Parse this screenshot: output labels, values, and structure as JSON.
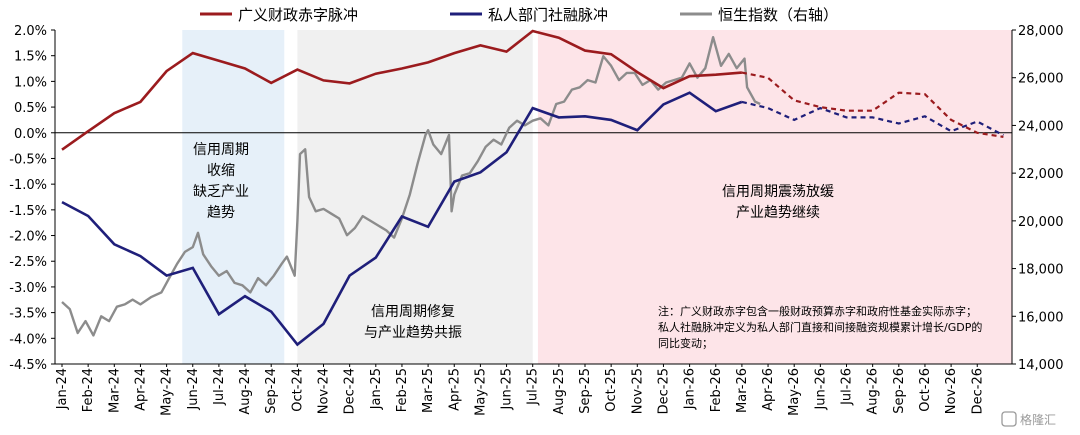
{
  "chart_data": {
    "type": "line",
    "title": "",
    "legend": [
      {
        "label": "广义财政赤字脉冲",
        "color": "#9b1b1e",
        "axis": "left"
      },
      {
        "label": "私人部门社融脉冲",
        "color": "#1f1f7a",
        "axis": "left"
      },
      {
        "label": "恒生指数（右轴）",
        "color": "#8c8c8c",
        "axis": "right"
      }
    ],
    "legend_position": "top",
    "x_categories": [
      "Jan-24",
      "Feb-24",
      "Mar-24",
      "Apr-24",
      "May-24",
      "Jun-24",
      "Jul-24",
      "Aug-24",
      "Sep-24",
      "Oct-24",
      "Nov-24",
      "Dec-24",
      "Jan-25",
      "Feb-25",
      "Mar-25",
      "Apr-25",
      "May-25",
      "Jun-25",
      "Jul-25",
      "Aug-25",
      "Sep-25",
      "Oct-25",
      "Nov-25",
      "Dec-25",
      "Jan-26",
      "Feb-26",
      "Mar-26",
      "Apr-26",
      "May-26",
      "Jun-26",
      "Jul-26",
      "Aug-26",
      "Sep-26",
      "Oct-26",
      "Nov-26",
      "Dec-26"
    ],
    "y_left": {
      "min": -0.045,
      "max": 0.02,
      "ticks": [
        "2.0%",
        "1.5%",
        "1.0%",
        "0.5%",
        "0.0%",
        "-0.5%",
        "-1.0%",
        "-1.5%",
        "-2.0%",
        "-2.5%",
        "-3.0%",
        "-3.5%",
        "-4.0%",
        "-4.5%"
      ]
    },
    "y_right": {
      "min": 14000,
      "max": 28000,
      "ticks": [
        "28,000",
        "26,000",
        "24,000",
        "22,000",
        "20,000",
        "18,000",
        "16,000",
        "14,000"
      ]
    },
    "series": [
      {
        "name": "广义财政赤字脉冲",
        "color": "#9b1b1e",
        "actual": [
          [
            0,
            -0.0033
          ],
          [
            1,
            0.0003
          ],
          [
            2,
            0.0038
          ],
          [
            3,
            0.006
          ],
          [
            4,
            0.012
          ],
          [
            5,
            0.0155
          ],
          [
            6,
            0.014
          ],
          [
            7,
            0.0125
          ],
          [
            8,
            0.0097
          ],
          [
            9,
            0.0123
          ],
          [
            10,
            0.0102
          ],
          [
            11,
            0.0096
          ],
          [
            12,
            0.0115
          ],
          [
            13,
            0.0125
          ],
          [
            14,
            0.0137
          ],
          [
            15,
            0.0155
          ],
          [
            16,
            0.017
          ],
          [
            17,
            0.0158
          ],
          [
            18,
            0.0198
          ],
          [
            19,
            0.0185
          ],
          [
            20,
            0.016
          ],
          [
            21,
            0.0153
          ],
          [
            22,
            0.0118
          ],
          [
            23,
            0.0087
          ],
          [
            24,
            0.011
          ],
          [
            25,
            0.0113
          ],
          [
            26,
            0.0117
          ]
        ],
        "forecast": [
          [
            26,
            0.0117
          ],
          [
            27,
            0.0107
          ],
          [
            28,
            0.0063
          ],
          [
            29,
            0.005
          ],
          [
            30,
            0.0043
          ],
          [
            31,
            0.0043
          ],
          [
            32,
            0.0078
          ],
          [
            33,
            0.0075
          ],
          [
            34,
            0.0025
          ],
          [
            35,
            0.0
          ],
          [
            36,
            -0.0008
          ]
        ]
      },
      {
        "name": "私人部门社融脉冲",
        "color": "#1f1f7a",
        "actual": [
          [
            0,
            -0.0135
          ],
          [
            1,
            -0.0162
          ],
          [
            2,
            -0.0217
          ],
          [
            3,
            -0.024
          ],
          [
            4,
            -0.0278
          ],
          [
            5,
            -0.0263
          ],
          [
            6,
            -0.0353
          ],
          [
            7,
            -0.0318
          ],
          [
            8,
            -0.0348
          ],
          [
            9,
            -0.0412
          ],
          [
            10,
            -0.0372
          ],
          [
            11,
            -0.0278
          ],
          [
            12,
            -0.0243
          ],
          [
            13,
            -0.0163
          ],
          [
            14,
            -0.0183
          ],
          [
            15,
            -0.0095
          ],
          [
            16,
            -0.0077
          ],
          [
            17,
            -0.0038
          ],
          [
            18,
            0.0048
          ],
          [
            19,
            0.003
          ],
          [
            20,
            0.0032
          ],
          [
            21,
            0.0025
          ],
          [
            22,
            0.0005
          ],
          [
            23,
            0.0055
          ],
          [
            24,
            0.0078
          ],
          [
            25,
            0.0042
          ],
          [
            26,
            0.006
          ]
        ],
        "forecast": [
          [
            26,
            0.006
          ],
          [
            27,
            0.0048
          ],
          [
            28,
            0.0025
          ],
          [
            29,
            0.0048
          ],
          [
            30,
            0.003
          ],
          [
            31,
            0.003
          ],
          [
            32,
            0.0018
          ],
          [
            33,
            0.0032
          ],
          [
            34,
            0.0003
          ],
          [
            35,
            0.0022
          ],
          [
            36,
            -0.0005
          ]
        ]
      },
      {
        "name": "恒生指数（右轴）",
        "color": "#8c8c8c",
        "values": [
          [
            0,
            16600
          ],
          [
            0.3,
            16300
          ],
          [
            0.6,
            15300
          ],
          [
            0.9,
            15800
          ],
          [
            1.2,
            15200
          ],
          [
            1.5,
            16000
          ],
          [
            1.8,
            15800
          ],
          [
            2.1,
            16400
          ],
          [
            2.4,
            16500
          ],
          [
            2.7,
            16700
          ],
          [
            3.0,
            16500
          ],
          [
            3.4,
            16800
          ],
          [
            3.8,
            17000
          ],
          [
            4.1,
            17600
          ],
          [
            4.4,
            18200
          ],
          [
            4.7,
            18700
          ],
          [
            5.0,
            18900
          ],
          [
            5.2,
            19500
          ],
          [
            5.4,
            18600
          ],
          [
            5.7,
            18100
          ],
          [
            6.0,
            17700
          ],
          [
            6.3,
            17900
          ],
          [
            6.6,
            17400
          ],
          [
            6.9,
            17300
          ],
          [
            7.2,
            17000
          ],
          [
            7.5,
            17600
          ],
          [
            7.8,
            17300
          ],
          [
            8.1,
            17700
          ],
          [
            8.4,
            18200
          ],
          [
            8.6,
            18500
          ],
          [
            8.9,
            17700
          ],
          [
            9.0,
            20000
          ],
          [
            9.1,
            22800
          ],
          [
            9.3,
            23000
          ],
          [
            9.45,
            21000
          ],
          [
            9.7,
            20400
          ],
          [
            10.0,
            20500
          ],
          [
            10.3,
            20300
          ],
          [
            10.6,
            20100
          ],
          [
            10.9,
            19400
          ],
          [
            11.2,
            19700
          ],
          [
            11.5,
            20200
          ],
          [
            11.8,
            20000
          ],
          [
            12.1,
            19800
          ],
          [
            12.4,
            19600
          ],
          [
            12.7,
            19300
          ],
          [
            13.0,
            20100
          ],
          [
            13.3,
            21100
          ],
          [
            13.6,
            22400
          ],
          [
            13.9,
            23600
          ],
          [
            14.0,
            23800
          ],
          [
            14.2,
            23200
          ],
          [
            14.5,
            22800
          ],
          [
            14.8,
            23600
          ],
          [
            14.9,
            20400
          ],
          [
            15.0,
            21100
          ],
          [
            15.3,
            21900
          ],
          [
            15.6,
            22000
          ],
          [
            15.9,
            22500
          ],
          [
            16.2,
            23100
          ],
          [
            16.5,
            23400
          ],
          [
            16.8,
            23200
          ],
          [
            17.1,
            23900
          ],
          [
            17.4,
            24200
          ],
          [
            17.7,
            24000
          ],
          [
            18.0,
            24200
          ],
          [
            18.3,
            24300
          ],
          [
            18.6,
            24000
          ],
          [
            18.9,
            24900
          ],
          [
            19.2,
            25000
          ],
          [
            19.5,
            25500
          ],
          [
            19.8,
            25600
          ],
          [
            20.1,
            25900
          ],
          [
            20.4,
            25800
          ],
          [
            20.7,
            26900
          ],
          [
            21.0,
            26500
          ],
          [
            21.3,
            25900
          ],
          [
            21.6,
            26200
          ],
          [
            21.9,
            26200
          ],
          [
            22.2,
            25700
          ],
          [
            22.5,
            25900
          ],
          [
            22.8,
            25500
          ],
          [
            23.1,
            25800
          ],
          [
            23.4,
            25900
          ],
          [
            23.7,
            26000
          ],
          [
            24.0,
            26600
          ],
          [
            24.3,
            26000
          ],
          [
            24.6,
            26400
          ],
          [
            24.9,
            27700
          ],
          [
            25.2,
            26500
          ],
          [
            25.5,
            27000
          ],
          [
            25.8,
            26400
          ],
          [
            26.1,
            26800
          ],
          [
            26.2,
            25600
          ],
          [
            26.5,
            25000
          ],
          [
            26.7,
            24900
          ]
        ]
      }
    ],
    "shaded_regions": [
      {
        "from": 4.6,
        "to": 8.5,
        "color": "#e6f0f9"
      },
      {
        "from": 9.0,
        "to": 18.0,
        "color": "#f0f0f0"
      },
      {
        "from": 18.2,
        "to": 36.6,
        "color": "#fde4e8"
      }
    ],
    "annotations": [
      {
        "id": "credit-shortage",
        "lines": [
          "信用周期",
          "收缩",
          "缺乏产业",
          "趋势"
        ]
      },
      {
        "id": "credit-repair",
        "lines": [
          "信用周期修复",
          "与产业趋势共振"
        ]
      },
      {
        "id": "credit-oscillate",
        "lines": [
          "信用周期震荡放缓",
          "产业趋势继续"
        ]
      }
    ],
    "note_lines": [
      "注：广义财政赤字包含一般财政预算赤字和政府性基金实际赤字；",
      "私人社融脉冲定义为私人部门直接和间接融资规模累计增长/GDP的",
      "同比变动；"
    ],
    "watermark": "格隆汇"
  }
}
